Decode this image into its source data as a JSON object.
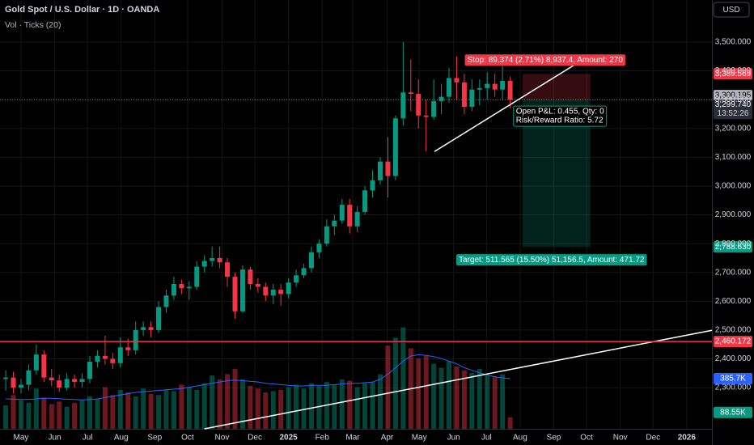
{
  "header": {
    "symbol": "Gold Spot / U.S. Dollar · 1D · OANDA",
    "indicator": "Vol · Ticks (20)",
    "currency": "USD"
  },
  "chart_data": {
    "type": "candlestick",
    "x": [
      -2,
      -1,
      0,
      1,
      2,
      3,
      4,
      5,
      6,
      7,
      8,
      9,
      10,
      11,
      12,
      13,
      14,
      15,
      16,
      17,
      18,
      19,
      20,
      21,
      22,
      23,
      24,
      25,
      26,
      27,
      28,
      29,
      30,
      31,
      32,
      33,
      34,
      35,
      36,
      37,
      38,
      39,
      40,
      41,
      42,
      43,
      44,
      45,
      46,
      47,
      48,
      49,
      50,
      51,
      52,
      53,
      54,
      55,
      56,
      57,
      58,
      59,
      60,
      61,
      62,
      63,
      64
    ],
    "open": [
      2330,
      2335,
      2300,
      2310,
      2360,
      2415,
      2335,
      2325,
      2300,
      2330,
      2320,
      2330,
      2390,
      2410,
      2400,
      2385,
      2440,
      2430,
      2500,
      2510,
      2500,
      2580,
      2620,
      2660,
      2645,
      2650,
      2720,
      2740,
      2750,
      2735,
      2685,
      2565,
      2710,
      2660,
      2650,
      2620,
      2640,
      2625,
      2665,
      2690,
      2715,
      2770,
      2800,
      2860,
      2880,
      2935,
      2860,
      2910,
      2985,
      3020,
      3085,
      3035,
      3235,
      3325,
      3320,
      3245,
      3240,
      3295,
      3310,
      3375,
      3360,
      3275,
      3335,
      3340,
      3355,
      3335,
      3365
    ],
    "high": [
      2360,
      2355,
      2330,
      2380,
      2450,
      2430,
      2365,
      2345,
      2350,
      2345,
      2350,
      2410,
      2430,
      2480,
      2420,
      2475,
      2470,
      2530,
      2530,
      2530,
      2600,
      2640,
      2685,
      2675,
      2670,
      2740,
      2760,
      2790,
      2790,
      2750,
      2700,
      2725,
      2720,
      2680,
      2665,
      2660,
      2660,
      2680,
      2710,
      2730,
      2790,
      2815,
      2885,
      2900,
      2955,
      2955,
      2930,
      3000,
      3055,
      3100,
      3170,
      3245,
      3500,
      3440,
      3370,
      3300,
      3370,
      3355,
      3410,
      3450,
      3390,
      3370,
      3370,
      3395,
      3390,
      3440,
      3380
    ],
    "low": [
      2290,
      2280,
      2280,
      2290,
      2345,
      2320,
      2305,
      2285,
      2290,
      2300,
      2300,
      2315,
      2370,
      2380,
      2365,
      2370,
      2410,
      2415,
      2480,
      2475,
      2490,
      2560,
      2605,
      2625,
      2605,
      2640,
      2700,
      2720,
      2715,
      2650,
      2540,
      2560,
      2640,
      2630,
      2600,
      2590,
      2585,
      2610,
      2650,
      2680,
      2700,
      2750,
      2790,
      2830,
      2870,
      2835,
      2840,
      2900,
      2960,
      3005,
      2960,
      3020,
      3210,
      3260,
      3200,
      3120,
      3230,
      3250,
      3290,
      3300,
      3250,
      3260,
      3280,
      3300,
      3310,
      3300,
      3270
    ],
    "close": [
      2335,
      2300,
      2310,
      2360,
      2415,
      2335,
      2325,
      2300,
      2330,
      2320,
      2330,
      2390,
      2410,
      2400,
      2385,
      2440,
      2430,
      2500,
      2510,
      2500,
      2580,
      2620,
      2660,
      2645,
      2650,
      2720,
      2740,
      2750,
      2735,
      2685,
      2565,
      2710,
      2660,
      2650,
      2620,
      2640,
      2625,
      2665,
      2690,
      2715,
      2770,
      2800,
      2860,
      2880,
      2935,
      2860,
      2910,
      2985,
      3020,
      3085,
      3035,
      3235,
      3325,
      3320,
      3245,
      3240,
      3295,
      3310,
      3375,
      3360,
      3275,
      3335,
      3340,
      3355,
      3335,
      3365,
      3300
    ],
    "up_color": "#089981",
    "down_color": "#f23645",
    "xlim": [
      -2.75,
      90.4
    ],
    "xticks": [
      {
        "value": 0,
        "label": "May"
      },
      {
        "value": 4.4,
        "label": "Jun"
      },
      {
        "value": 8.7,
        "label": "Jul"
      },
      {
        "value": 13.1,
        "label": "Aug"
      },
      {
        "value": 17.5,
        "label": "Sep"
      },
      {
        "value": 21.8,
        "label": "Oct"
      },
      {
        "value": 26.3,
        "label": "Nov"
      },
      {
        "value": 30.6,
        "label": "Dec"
      },
      {
        "value": 35,
        "label": "2025"
      },
      {
        "value": 39.4,
        "label": "Feb"
      },
      {
        "value": 43.4,
        "label": "Mar"
      },
      {
        "value": 47.9,
        "label": "Apr"
      },
      {
        "value": 52.1,
        "label": "May"
      },
      {
        "value": 56.6,
        "label": "Jun"
      },
      {
        "value": 60.9,
        "label": "Jul"
      },
      {
        "value": 65.3,
        "label": "Aug"
      },
      {
        "value": 69.7,
        "label": "Sep"
      },
      {
        "value": 74,
        "label": "Oct"
      },
      {
        "value": 78.4,
        "label": "Nov"
      },
      {
        "value": 82.7,
        "label": "Dec"
      },
      {
        "value": 87.1,
        "label": "2026"
      }
    ],
    "ylim": [
      2157,
      3646
    ],
    "yticks": [
      {
        "value": 2300,
        "label": "2,300.000"
      },
      {
        "value": 2400,
        "label": "2,400.000"
      },
      {
        "value": 2500,
        "label": "2,500.000"
      },
      {
        "value": 2600,
        "label": "2,600.000"
      },
      {
        "value": 2700,
        "label": "2,700.000"
      },
      {
        "value": 2800,
        "label": "2,800.000"
      },
      {
        "value": 2900,
        "label": "2,900.000"
      },
      {
        "value": 3000,
        "label": "3,000.000"
      },
      {
        "value": 3100,
        "label": "3,100.000"
      },
      {
        "value": 3200,
        "label": "3,200.000"
      },
      {
        "value": 3300,
        "label": "3,300.000"
      },
      {
        "value": 3400,
        "label": "3,400.000"
      },
      {
        "value": 3500,
        "label": "3,500.000"
      }
    ],
    "grid": true,
    "volume": {
      "values": [
        180,
        260,
        220,
        200,
        310,
        240,
        190,
        210,
        170,
        200,
        220,
        250,
        230,
        320,
        260,
        300,
        280,
        250,
        310,
        270,
        260,
        300,
        290,
        340,
        320,
        300,
        350,
        410,
        380,
        420,
        460,
        380,
        330,
        310,
        280,
        290,
        300,
        320,
        340,
        310,
        350,
        330,
        360,
        340,
        380,
        370,
        320,
        350,
        360,
        420,
        640,
        700,
        780,
        620,
        540,
        560,
        500,
        470,
        520,
        480,
        450,
        430,
        460,
        410,
        400,
        420,
        88.55
      ],
      "last_label": "88.55K",
      "ma": [
        230,
        228,
        226,
        225,
        230,
        235,
        235,
        232,
        228,
        225,
        222,
        225,
        230,
        240,
        250,
        260,
        270,
        280,
        285,
        290,
        295,
        300,
        305,
        310,
        320,
        330,
        340,
        350,
        360,
        370,
        375,
        370,
        365,
        360,
        350,
        345,
        340,
        335,
        330,
        330,
        335,
        335,
        335,
        340,
        345,
        350,
        350,
        355,
        360,
        380,
        420,
        470,
        520,
        560,
        570,
        565,
        555,
        540,
        520,
        500,
        470,
        450,
        430,
        415,
        400,
        392,
        385.7
      ],
      "ma_last_label": "385.7K",
      "ma_color": "#2962ff"
    },
    "y2lim": [
      0,
      3298
    ],
    "trendlines": [
      {
        "x": [
          54.1,
          74.5
        ],
        "y": [
          3120,
          3455
        ]
      },
      {
        "x": [
          24,
          90.4
        ],
        "y": [
          2157,
          2499
        ]
      }
    ],
    "hline": {
      "value": 2460.172,
      "label": "2,460.172",
      "color": "#f23645"
    },
    "position": {
      "x": [
        65.6,
        74.5
      ],
      "entry": {
        "value": 3300.195,
        "label": "3,300.195"
      },
      "stop": {
        "value": 3389.569,
        "label": "3,389.569"
      },
      "target": {
        "value": 2788.63,
        "label": "2,788.630"
      },
      "stop_text": "Stop: 89.374 (2.71%) 8,937.4, Amount: 270",
      "target_text": "Target: 511.565 (15.50%) 51,156.5, Amount: 471.72",
      "pnl_text": "Open P&L: 0.455, Qty: 0",
      "rr_text": "Risk/Reward Ratio: 5.72"
    },
    "last_price": {
      "value": 3299.74,
      "label": "3,299.740"
    },
    "countdown": "13:52:26"
  }
}
